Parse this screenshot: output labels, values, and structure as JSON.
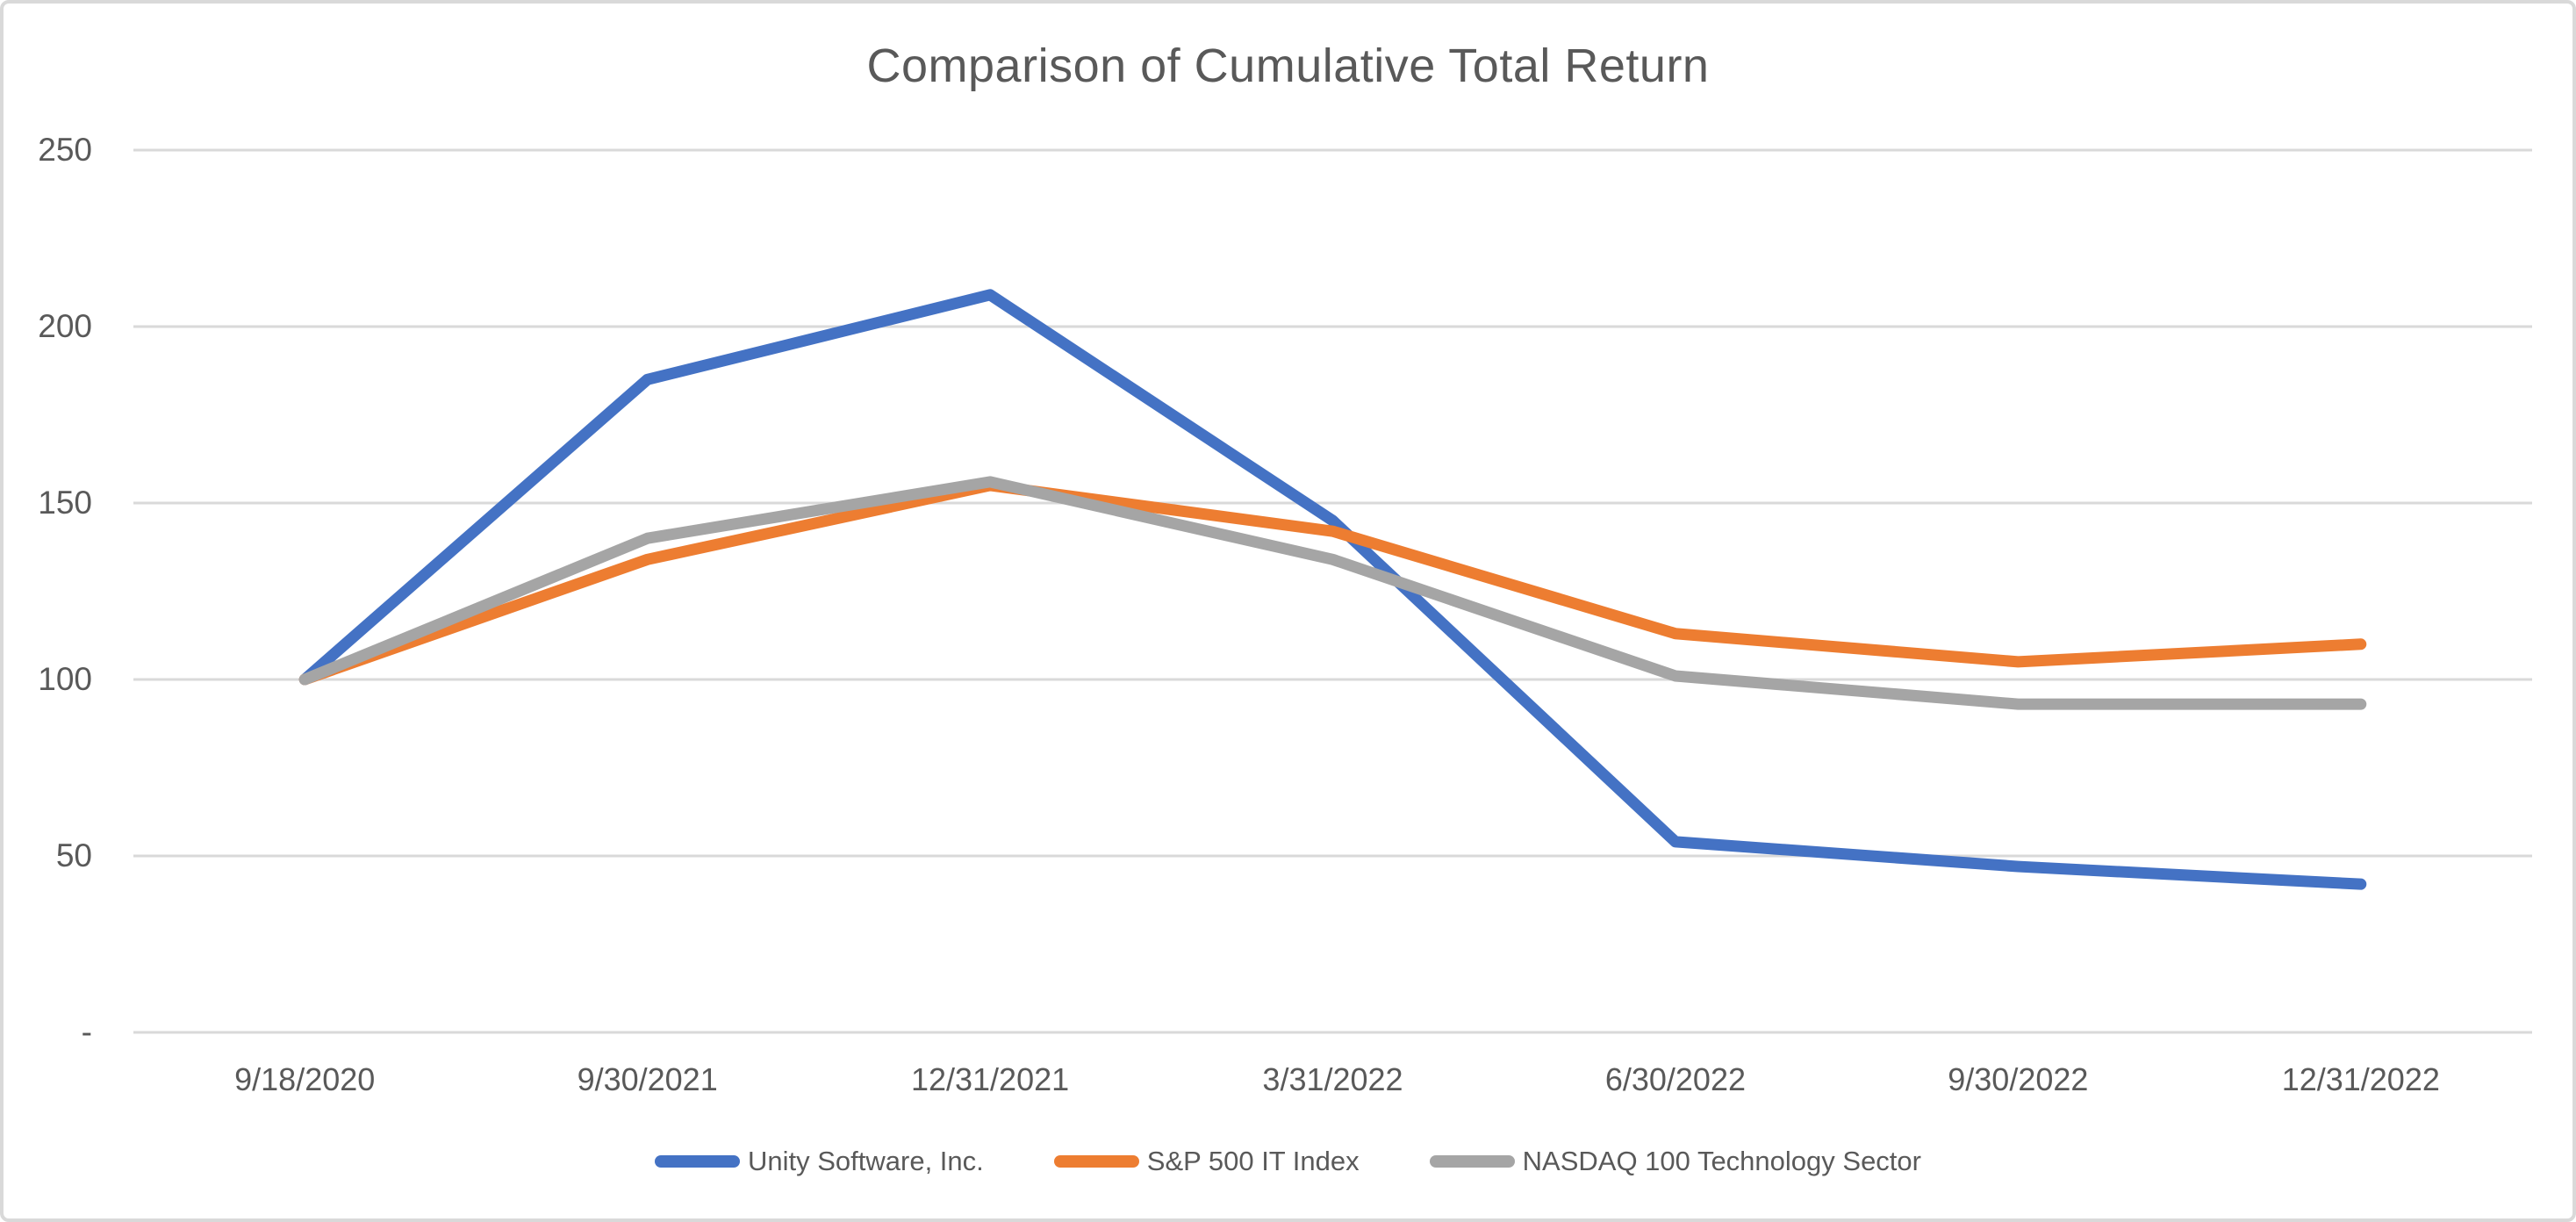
{
  "chart_data": {
    "type": "line",
    "title": "Comparison of Cumulative Total Return",
    "categories": [
      "9/18/2020",
      "9/30/2021",
      "12/31/2021",
      "3/31/2022",
      "6/30/2022",
      "9/30/2022",
      "12/31/2022"
    ],
    "series": [
      {
        "name": "Unity Software, Inc.",
        "color": "#4472C4",
        "values": [
          100,
          185,
          209,
          145,
          54,
          47,
          42
        ]
      },
      {
        "name": "S&P 500 IT Index",
        "color": "#ED7D31",
        "values": [
          100,
          134,
          155,
          142,
          113,
          105,
          110
        ]
      },
      {
        "name": "NASDAQ 100 Technology Sector",
        "color": "#A5A5A5",
        "values": [
          100,
          140,
          156,
          134,
          101,
          93,
          93
        ]
      }
    ],
    "y_axis": {
      "min": 0,
      "max": 250,
      "step": 50,
      "tick_labels": [
        "-",
        "50",
        "100",
        "150",
        "200",
        "250"
      ]
    },
    "x_axis": {
      "label": ""
    },
    "grid": true,
    "legend_position": "bottom",
    "styles": {
      "grid_color": "#D9D9D9",
      "border_color": "#D9D9D9",
      "text_color": "#595959",
      "background": "#FFFFFF"
    }
  }
}
